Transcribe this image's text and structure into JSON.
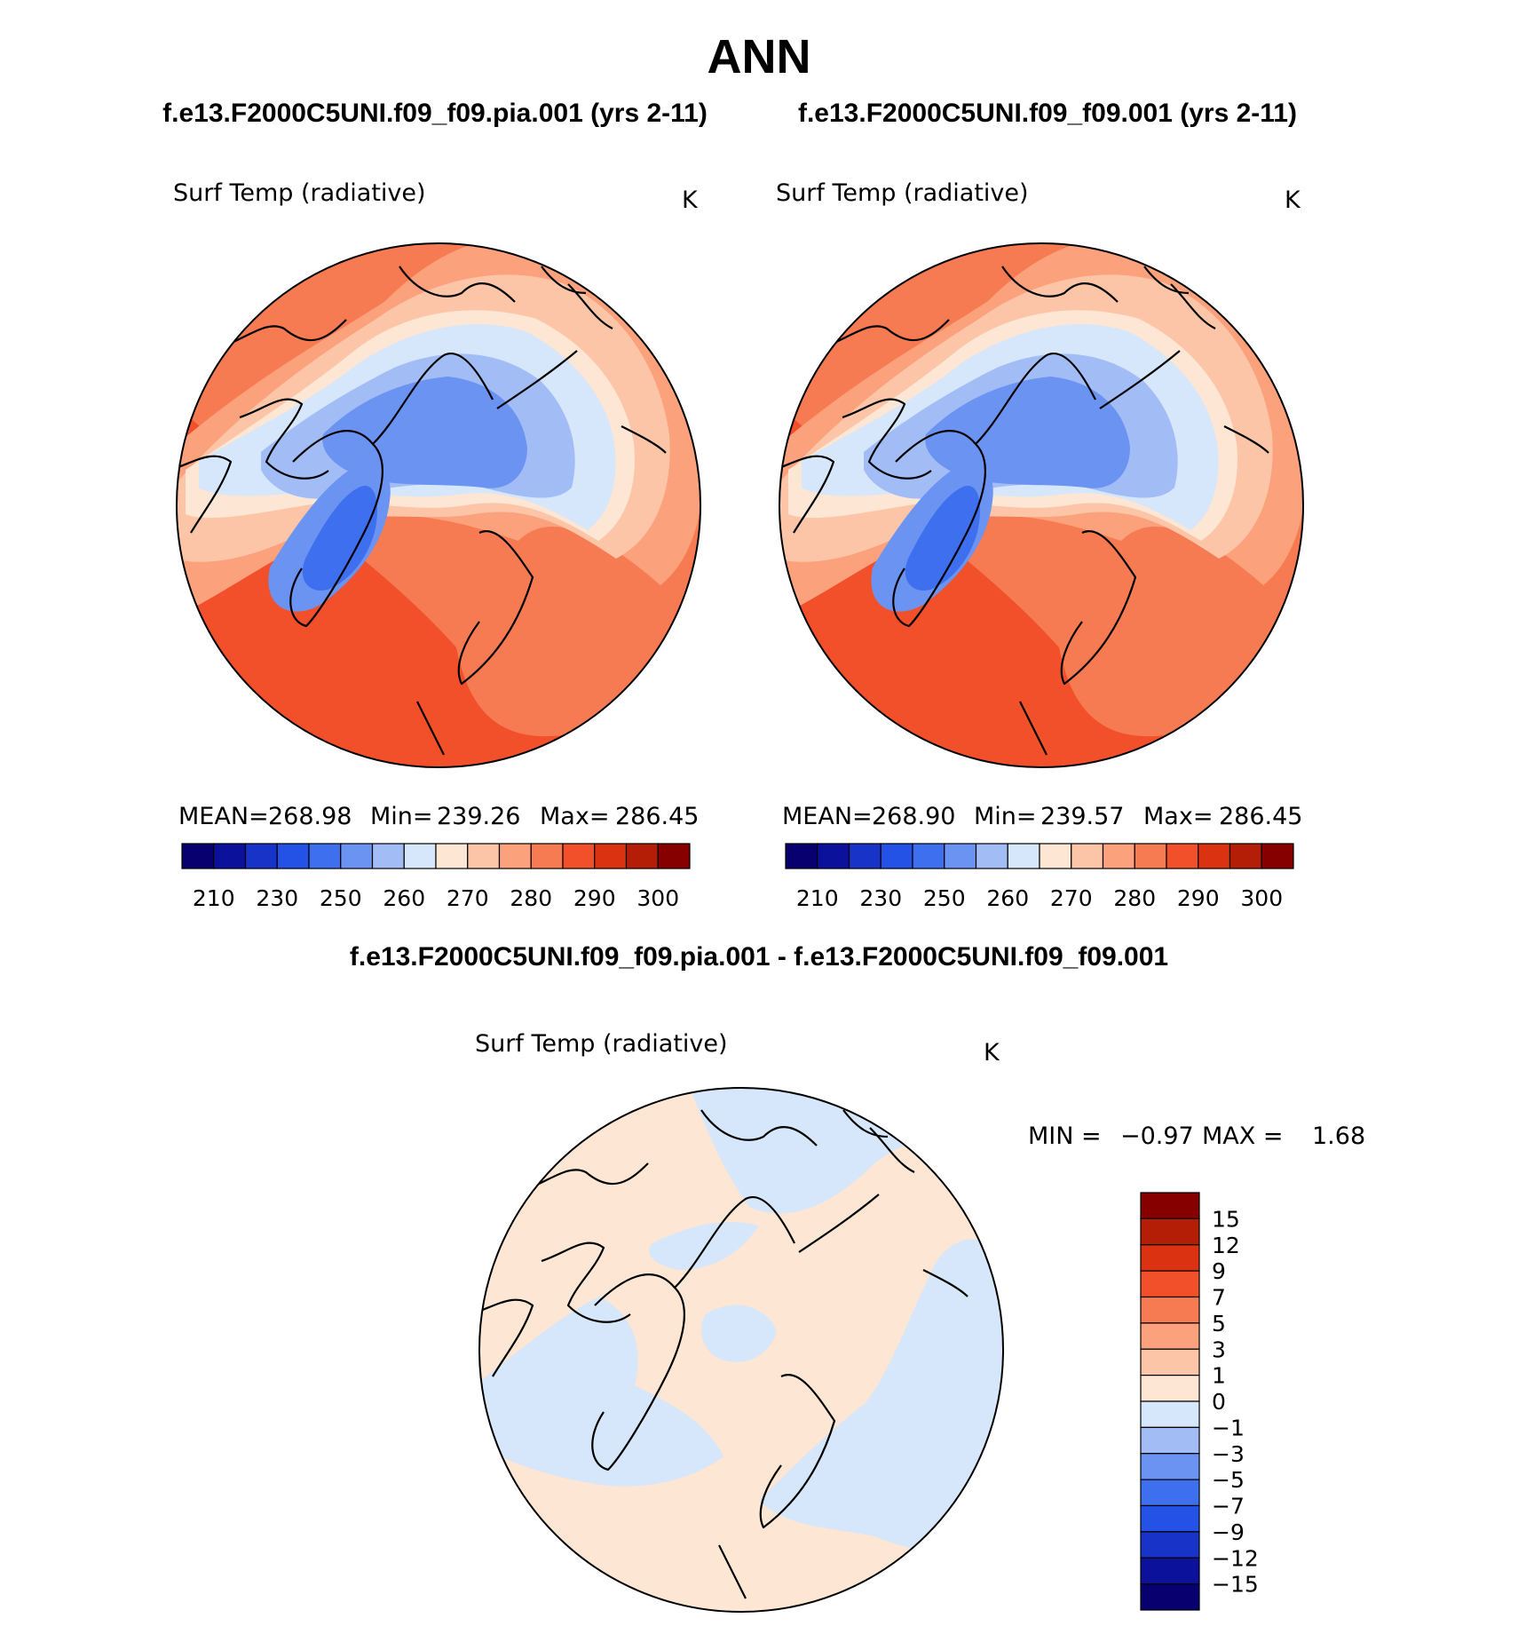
{
  "title": "ANN",
  "panels": [
    {
      "case": "f.e13.F2000C5UNI.f09_f09.pia.001 (yrs 2-11)",
      "variable": "Surf Temp (radiative)",
      "units": "K",
      "stats": {
        "mean_label": "MEAN=",
        "mean": "268.98",
        "min_label": "Min=",
        "min": "239.26",
        "max_label": "Max=",
        "max": "286.45"
      }
    },
    {
      "case": "f.e13.F2000C5UNI.f09_f09.001 (yrs 2-11)",
      "variable": "Surf Temp (radiative)",
      "units": "K",
      "stats": {
        "mean_label": "MEAN=",
        "mean": "268.90",
        "min_label": "Min=",
        "min": "239.57",
        "max_label": "Max=",
        "max": "286.45"
      }
    }
  ],
  "abs_colorbar": {
    "colors": [
      "#08006e",
      "#0c119c",
      "#1733c8",
      "#2452e6",
      "#3d6fee",
      "#6b93f2",
      "#a2bcf6",
      "#d6e6fb",
      "#fde6d4",
      "#fcc5a8",
      "#fba17c",
      "#f77b52",
      "#f1502a",
      "#db3311",
      "#b51e06",
      "#860000"
    ],
    "labels": [
      "210",
      "230",
      "250",
      "260",
      "270",
      "280",
      "290",
      "300"
    ]
  },
  "diff": {
    "title": "f.e13.F2000C5UNI.f09_f09.pia.001 - f.e13.F2000C5UNI.f09_f09.001",
    "variable": "Surf Temp (radiative)",
    "units": "K",
    "min_label": "MIN =",
    "min": "−0.97",
    "max_label": "MAX =",
    "max": "1.68",
    "colorbar_colors_top_to_bottom": [
      "#860000",
      "#b51e06",
      "#db3311",
      "#f1502a",
      "#f77b52",
      "#fba17c",
      "#fcc5a8",
      "#fde6d4",
      "#d6e6fb",
      "#a2bcf6",
      "#6b93f2",
      "#3d6fee",
      "#2452e6",
      "#1733c8",
      "#0c119c",
      "#08006e"
    ],
    "colorbar_labels_top_to_bottom": [
      "15",
      "12",
      "9",
      "7",
      "5",
      "3",
      "1",
      "0",
      "−1",
      "−3",
      "−5",
      "−7",
      "−9",
      "−12",
      "−15"
    ]
  }
}
